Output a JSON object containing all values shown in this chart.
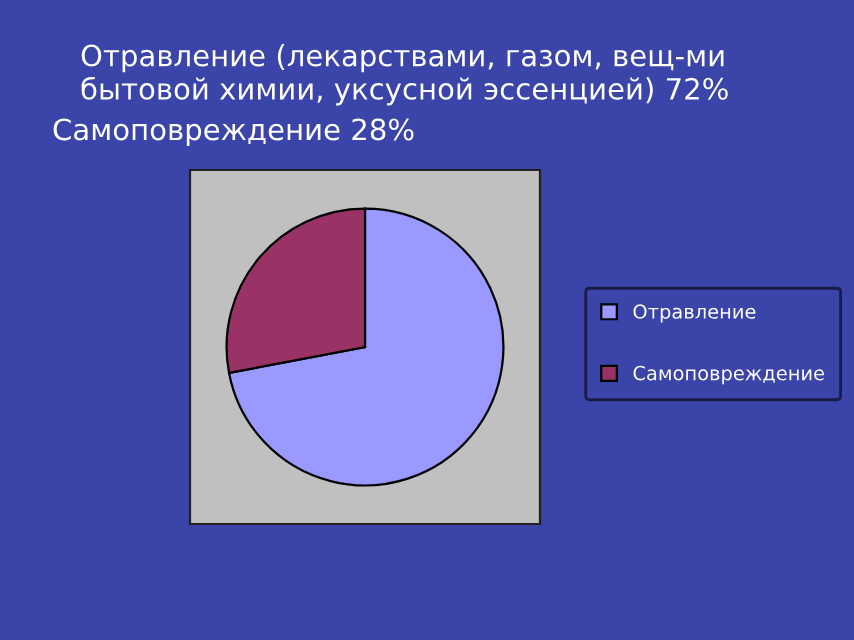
{
  "chart_data": {
    "type": "pie",
    "title": "Отравление (лекарствами, газом, вещ-ми бытовой химии, уксусной эссенцией) 72%",
    "subtitle": "Самоповреждение 28%",
    "categories": [
      "Отравление",
      "Самоповреждение"
    ],
    "values": [
      72,
      28
    ],
    "colors": [
      "#9999ff",
      "#993366"
    ],
    "legend": "right"
  }
}
